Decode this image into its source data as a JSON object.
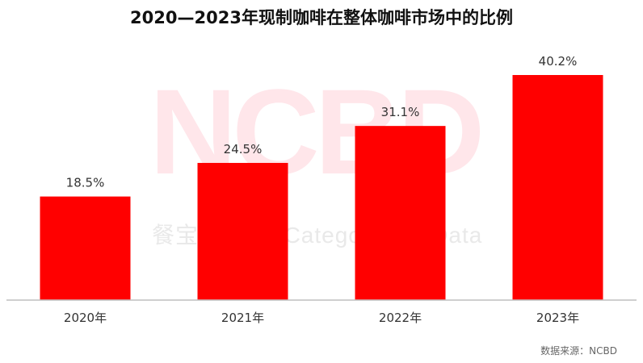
{
  "title": "2020—2023年现制咖啡在整体咖啡市场中的比例",
  "source": "数据来源：NCBD",
  "watermark": {
    "logo": "NCBD",
    "tagline": "餐宝典 New Category Big Data"
  },
  "colors": {
    "bar": "#ff0000",
    "axis": "#bfbfbf",
    "text": "#333333"
  },
  "chart_data": {
    "type": "bar",
    "title": "2020—2023年现制咖啡在整体咖啡市场中的比例",
    "xlabel": "",
    "ylabel": "",
    "categories": [
      "2020年",
      "2021年",
      "2022年",
      "2023年"
    ],
    "values": [
      18.5,
      24.5,
      31.1,
      40.2
    ],
    "value_labels": [
      "18.5%",
      "24.5%",
      "31.1%",
      "40.2%"
    ],
    "unit": "%",
    "ylim": [
      0,
      40.2
    ],
    "grid": false,
    "legend": "none"
  }
}
